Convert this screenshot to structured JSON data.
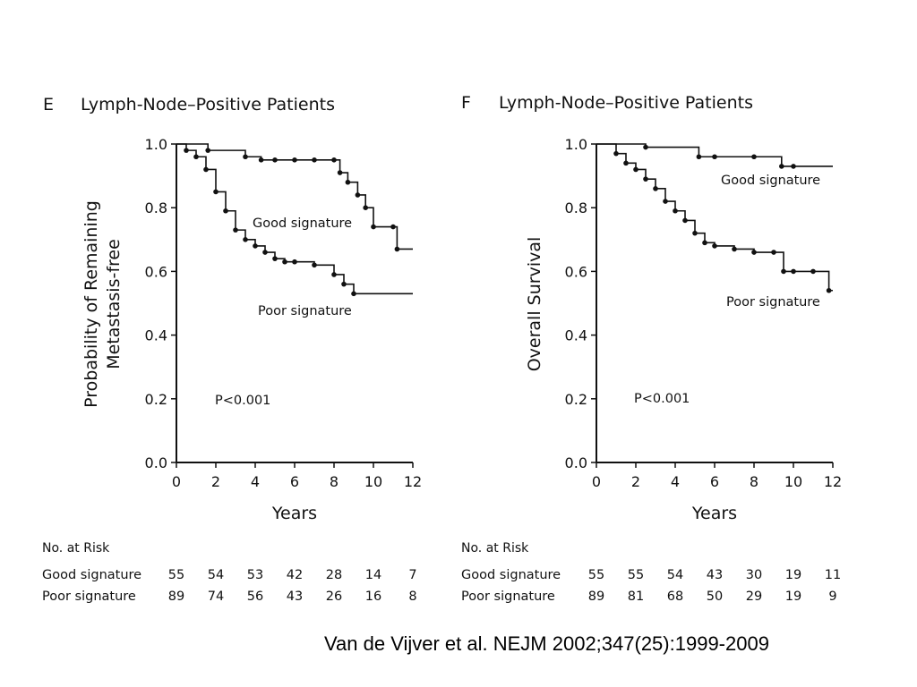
{
  "citation": "Van de Vijver et al. NEJM 2002;347(25):1999-2009",
  "chart_data": [
    {
      "type": "line",
      "panel": "E",
      "title": "Lymph-Node–Positive Patients",
      "xlabel": "Years",
      "ylabel": [
        "Probability of Remaining",
        "Metastasis-free"
      ],
      "xlim": [
        0,
        12
      ],
      "ylim": [
        0,
        1
      ],
      "x_ticks": [
        "0",
        "2",
        "4",
        "6",
        "8",
        "10",
        "12"
      ],
      "y_ticks": [
        "0.0",
        "0.2",
        "0.4",
        "0.6",
        "0.8",
        "1.0"
      ],
      "grid": false,
      "p_value": "P<0.001",
      "series": [
        {
          "name": "Good signature",
          "x": [
            0,
            1.6,
            3.5,
            4.3,
            5.0,
            6.0,
            7.0,
            8.0,
            8.3,
            8.7,
            9.2,
            9.6,
            10.0,
            11.0,
            11.2,
            12.0
          ],
          "y": [
            1.0,
            0.98,
            0.96,
            0.95,
            0.95,
            0.95,
            0.95,
            0.95,
            0.91,
            0.88,
            0.84,
            0.8,
            0.74,
            0.74,
            0.67,
            0.67
          ]
        },
        {
          "name": "Poor signature",
          "x": [
            0,
            0.5,
            1.0,
            1.5,
            2.0,
            2.5,
            3.0,
            3.5,
            4.0,
            4.5,
            5.0,
            5.5,
            6.0,
            7.0,
            8.0,
            8.5,
            9.0,
            12.0
          ],
          "y": [
            1.0,
            0.98,
            0.96,
            0.92,
            0.85,
            0.79,
            0.73,
            0.7,
            0.68,
            0.66,
            0.64,
            0.63,
            0.63,
            0.62,
            0.59,
            0.56,
            0.53,
            0.53
          ]
        }
      ],
      "risk_table": {
        "header": "No. at Risk",
        "rows": [
          {
            "label": "Good signature",
            "values": [
              "55",
              "54",
              "53",
              "42",
              "28",
              "14",
              "7"
            ]
          },
          {
            "label": "Poor signature",
            "values": [
              "89",
              "74",
              "56",
              "43",
              "26",
              "16",
              "8"
            ]
          }
        ]
      }
    },
    {
      "type": "line",
      "panel": "F",
      "title": "Lymph-Node–Positive Patients",
      "xlabel": "Years",
      "ylabel": [
        "Overall Survival"
      ],
      "xlim": [
        0,
        12
      ],
      "ylim": [
        0,
        1
      ],
      "x_ticks": [
        "0",
        "2",
        "4",
        "6",
        "8",
        "10",
        "12"
      ],
      "y_ticks": [
        "0.0",
        "0.2",
        "0.4",
        "0.6",
        "0.8",
        "1.0"
      ],
      "grid": false,
      "p_value": "P<0.001",
      "series": [
        {
          "name": "Good signature",
          "x": [
            0,
            2.5,
            5.2,
            6.0,
            8.0,
            9.4,
            10.0,
            12.0
          ],
          "y": [
            1.0,
            0.99,
            0.96,
            0.96,
            0.96,
            0.93,
            0.93,
            0.93
          ]
        },
        {
          "name": "Poor signature",
          "x": [
            0,
            1.0,
            1.5,
            2.0,
            2.5,
            3.0,
            3.5,
            4.0,
            4.5,
            5.0,
            5.5,
            6.0,
            7.0,
            8.0,
            9.0,
            9.5,
            10.0,
            11.0,
            11.8,
            12.0
          ],
          "y": [
            1.0,
            0.97,
            0.94,
            0.92,
            0.89,
            0.86,
            0.82,
            0.79,
            0.76,
            0.72,
            0.69,
            0.68,
            0.67,
            0.66,
            0.66,
            0.6,
            0.6,
            0.6,
            0.54,
            0.54
          ]
        }
      ],
      "risk_table": {
        "header": "No. at Risk",
        "rows": [
          {
            "label": "Good signature",
            "values": [
              "55",
              "55",
              "54",
              "43",
              "30",
              "19",
              "11"
            ]
          },
          {
            "label": "Poor signature",
            "values": [
              "89",
              "81",
              "68",
              "50",
              "29",
              "19",
              "9"
            ]
          }
        ]
      }
    }
  ]
}
